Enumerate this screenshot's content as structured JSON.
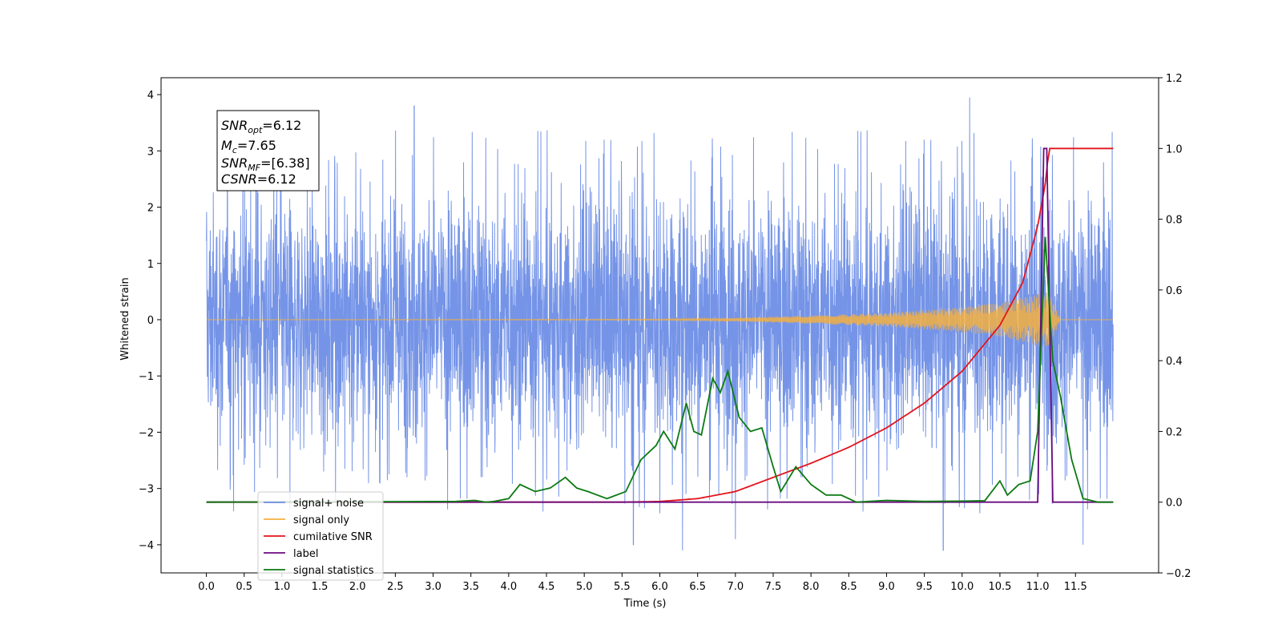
{
  "chart_data": {
    "type": "line",
    "xlabel": "Time (s)",
    "ylabel": "Whitened strain",
    "xlim": [
      -0.6,
      12.6
    ],
    "ylim": [
      -4.5,
      4.3
    ],
    "ylim_right": [
      -0.2,
      1.2
    ],
    "x_ticks": [
      "0.0",
      "0.5",
      "1.0",
      "1.5",
      "2.0",
      "2.5",
      "3.0",
      "3.5",
      "4.0",
      "4.5",
      "5.0",
      "5.5",
      "6.0",
      "6.5",
      "7.0",
      "7.5",
      "8.0",
      "8.5",
      "9.0",
      "9.5",
      "10.0",
      "10.5",
      "11.0",
      "11.5"
    ],
    "y_ticks_left": [
      "4",
      "3",
      "2",
      "1",
      "0",
      "−1",
      "−2",
      "−3",
      "−4"
    ],
    "y_ticks_right": [
      "1.2",
      "1.0",
      "0.8",
      "0.6",
      "0.4",
      "0.2",
      "0.0",
      "−0.2"
    ],
    "grid": false,
    "legend_position": "lower-left",
    "info_box": {
      "snr_opt_base": "SNR",
      "snr_opt_sub": "opt",
      "snr_opt_value": "=6.12",
      "mc_base": "M",
      "mc_sub": "c",
      "mc_value": "=7.65",
      "snr_mf_base": "SNR",
      "snr_mf_sub": "MF",
      "snr_mf_value": "=[6.38]",
      "csnr_base": "CSNR",
      "csnr_value": "=6.12"
    },
    "series": [
      {
        "name": "signal+ noise",
        "color": "#6e8ee6",
        "axis": "left",
        "x_range": [
          0.0,
          12.0
        ],
        "amplitude_envelope": 2.7,
        "spike_peaks": [
          [
            2.75,
            3.8
          ],
          [
            10.1,
            3.95
          ],
          [
            6.3,
            -4.1
          ],
          [
            9.75,
            -4.1
          ],
          [
            5.65,
            -4.0
          ],
          [
            7.0,
            -3.9
          ],
          [
            11.6,
            -4.0
          ]
        ]
      },
      {
        "name": "signal only",
        "color": "#f5b041",
        "axis": "left",
        "x": [
          0.0,
          6.0,
          7.0,
          8.0,
          9.0,
          10.0,
          10.5,
          11.0,
          11.15,
          11.3,
          12.0
        ],
        "envelope": [
          0.0,
          0.01,
          0.03,
          0.07,
          0.12,
          0.22,
          0.3,
          0.45,
          0.5,
          0.0,
          0.0
        ]
      },
      {
        "name": "cumilative SNR",
        "color": "#e3141c",
        "axis": "right",
        "x": [
          0.0,
          5.5,
          6.0,
          6.5,
          7.0,
          7.5,
          8.0,
          8.5,
          9.0,
          9.5,
          10.0,
          10.5,
          10.8,
          11.0,
          11.1,
          11.15,
          12.0
        ],
        "values": [
          0.0,
          0.0,
          0.002,
          0.01,
          0.03,
          0.07,
          0.11,
          0.155,
          0.21,
          0.28,
          0.37,
          0.5,
          0.62,
          0.78,
          0.9,
          1.0,
          1.0
        ]
      },
      {
        "name": "label",
        "color": "#6b0a7e",
        "axis": "right",
        "x": [
          0.0,
          11.0,
          11.08,
          11.12,
          11.2,
          12.0
        ],
        "values": [
          0.0,
          0.0,
          1.0,
          1.0,
          0.0,
          0.0
        ]
      },
      {
        "name": "signal statistics",
        "color": "#0c7a12",
        "axis": "right",
        "x": [
          0.0,
          3.3,
          3.55,
          3.7,
          3.8,
          4.0,
          4.15,
          4.35,
          4.55,
          4.75,
          4.9,
          5.05,
          5.3,
          5.55,
          5.75,
          5.95,
          6.05,
          6.2,
          6.35,
          6.45,
          6.55,
          6.7,
          6.8,
          6.9,
          7.05,
          7.2,
          7.35,
          7.5,
          7.6,
          7.8,
          8.0,
          8.2,
          8.4,
          8.6,
          9.0,
          9.5,
          10.0,
          10.3,
          10.5,
          10.6,
          10.75,
          10.9,
          11.0,
          11.1,
          11.2,
          11.3,
          11.45,
          11.6,
          11.8,
          12.0
        ],
        "values": [
          0.0,
          0.002,
          0.005,
          0.0,
          0.002,
          0.01,
          0.05,
          0.03,
          0.04,
          0.07,
          0.04,
          0.03,
          0.01,
          0.03,
          0.12,
          0.16,
          0.2,
          0.15,
          0.28,
          0.2,
          0.19,
          0.35,
          0.31,
          0.37,
          0.24,
          0.2,
          0.21,
          0.1,
          0.03,
          0.1,
          0.05,
          0.02,
          0.02,
          0.0,
          0.005,
          0.002,
          0.003,
          0.004,
          0.06,
          0.02,
          0.05,
          0.06,
          0.2,
          0.75,
          0.4,
          0.3,
          0.12,
          0.01,
          0.0,
          0.0
        ]
      }
    ]
  }
}
